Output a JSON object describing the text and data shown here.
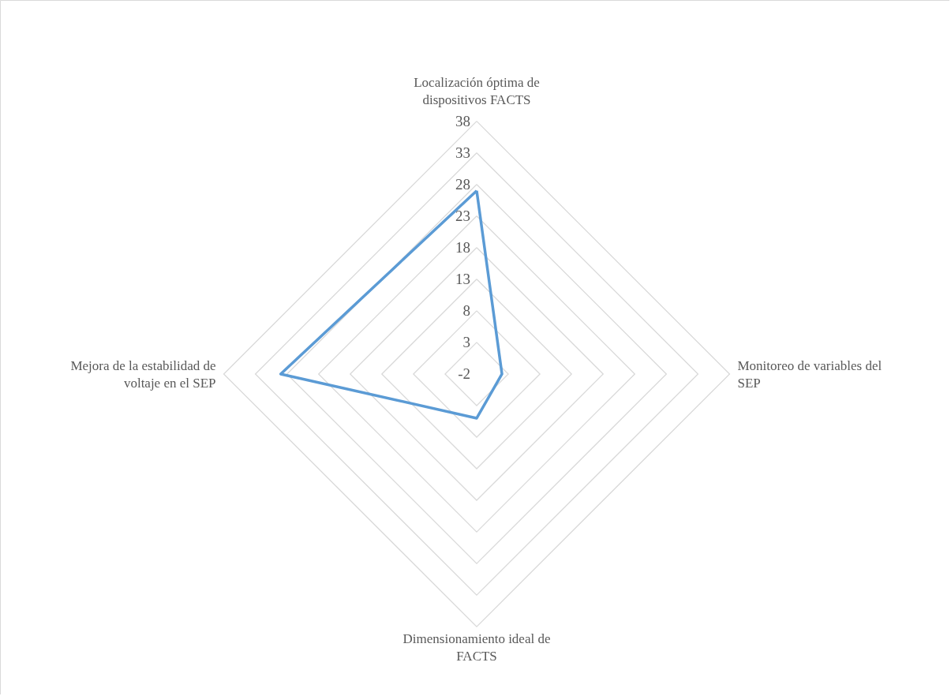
{
  "chart_data": {
    "type": "radar",
    "categories": [
      "Localización óptima de dispositivos FACTS",
      "Monitoreo de variables del SEP",
      "Dimensionamiento ideal de FACTS",
      "Mejora de la estabilidad de voltaje en el SEP"
    ],
    "series": [
      {
        "color": "#5b9bd5",
        "values": [
          27,
          2,
          5,
          29
        ]
      }
    ],
    "ylim": [
      -2,
      38
    ],
    "yticks": [
      -2,
      3,
      8,
      13,
      18,
      23,
      28,
      33,
      38
    ],
    "grid": true
  }
}
